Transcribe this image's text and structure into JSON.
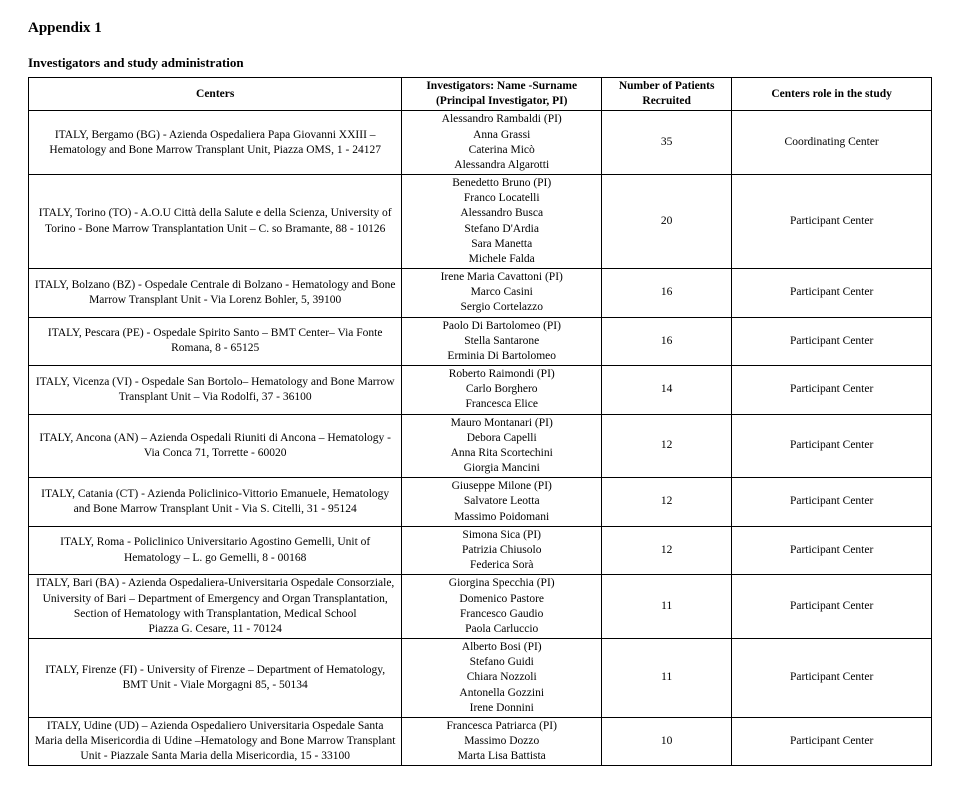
{
  "title": "Appendix 1",
  "subtitle": "Investigators and study administration",
  "headers": {
    "centers": "Centers",
    "investigators": "Investigators:\nName -Surname (Principal Investigator, PI)",
    "number": "Number of Patients Recruited",
    "role": "Centers role in the study"
  },
  "rows": [
    {
      "center": "ITALY, Bergamo (BG) - Azienda Ospedaliera Papa Giovanni XXIII – Hematology and Bone Marrow Transplant Unit,  Piazza OMS, 1 - 24127",
      "investigators": "Alessandro Rambaldi (PI)\nAnna Grassi\nCaterina Micò\nAlessandra Algarotti",
      "number": "35",
      "role": "Coordinating Center"
    },
    {
      "center": "ITALY, Torino (TO) - A.O.U Città della Salute e della Scienza, University of Torino - Bone Marrow Transplantation Unit – C. so Bramante, 88 - 10126",
      "investigators": "Benedetto Bruno (PI)\nFranco Locatelli\nAlessandro Busca\nStefano D'Ardia\nSara Manetta\nMichele Falda",
      "number": "20",
      "role": "Participant Center"
    },
    {
      "center": "ITALY, Bolzano (BZ) - Ospedale Centrale di Bolzano - Hematology and Bone Marrow Transplant Unit - Via Lorenz Bohler, 5, 39100",
      "investigators": "Irene Maria Cavattoni (PI)\nMarco Casini\nSergio Cortelazzo",
      "number": "16",
      "role": "Participant Center"
    },
    {
      "center": "ITALY, Pescara (PE) - Ospedale Spirito Santo – BMT Center– Via Fonte Romana, 8 - 65125",
      "investigators": "Paolo Di Bartolomeo (PI)\nStella Santarone\nErminia Di Bartolomeo",
      "number": "16",
      "role": "Participant Center"
    },
    {
      "center": "ITALY, Vicenza (VI) - Ospedale San Bortolo– Hematology and Bone Marrow Transplant Unit  – Via Rodolfi, 37 - 36100",
      "investigators": "Roberto Raimondi (PI)\nCarlo Borghero\nFrancesca Elice",
      "number": "14",
      "role": "Participant Center"
    },
    {
      "center": "ITALY, Ancona (AN) – Azienda Ospedali Riuniti di Ancona – Hematology - Via Conca 71, Torrette - 60020",
      "investigators": "Mauro Montanari (PI)\nDebora Capelli\nAnna Rita Scortechini\nGiorgia Mancini",
      "number": "12",
      "role": "Participant Center"
    },
    {
      "center": "ITALY, Catania (CT) - Azienda Policlinico-Vittorio Emanuele, Hematology and Bone Marrow Transplant Unit  - Via S. Citelli, 31 - 95124",
      "investigators": "Giuseppe Milone (PI)\nSalvatore Leotta\nMassimo Poidomani",
      "number": "12",
      "role": "Participant Center"
    },
    {
      "center": "ITALY, Roma - Policlinico Universitario Agostino Gemelli,  Unit of  Hematology – L. go Gemelli, 8 - 00168",
      "investigators": "Simona Sica (PI)\nPatrizia Chiusolo\nFederica Sorà",
      "number": "12",
      "role": "Participant Center"
    },
    {
      "center": "ITALY, Bari (BA) - Azienda Ospedaliera-Universitaria Ospedale Consorziale, University of  Bari – Department of Emergency and Organ Transplantation, Section of Hematology with Transplantation, Medical School\nPiazza G. Cesare, 11 - 70124",
      "investigators": "Giorgina Specchia (PI)\nDomenico Pastore\nFrancesco Gaudio\nPaola Carluccio",
      "number": "11",
      "role": "Participant Center"
    },
    {
      "center": "ITALY, Firenze (FI) -  University of Firenze –  Department of Hematology, BMT Unit - Viale Morgagni 85, - 50134",
      "investigators": "Alberto Bosi (PI)\nStefano Guidi\nChiara Nozzoli\nAntonella Gozzini\nIrene Donnini",
      "number": "11",
      "role": "Participant Center"
    },
    {
      "center": "ITALY, Udine (UD) – Azienda Ospedaliero Universitaria Ospedale Santa Maria della Misericordia di Udine –Hematology and Bone Marrow Transplant Unit - Piazzale Santa Maria della Misericordia, 15 - 33100",
      "investigators": "Francesca Patriarca (PI)\nMassimo Dozzo\nMarta Lisa Battista",
      "number": "10",
      "role": "Participant Center"
    }
  ]
}
